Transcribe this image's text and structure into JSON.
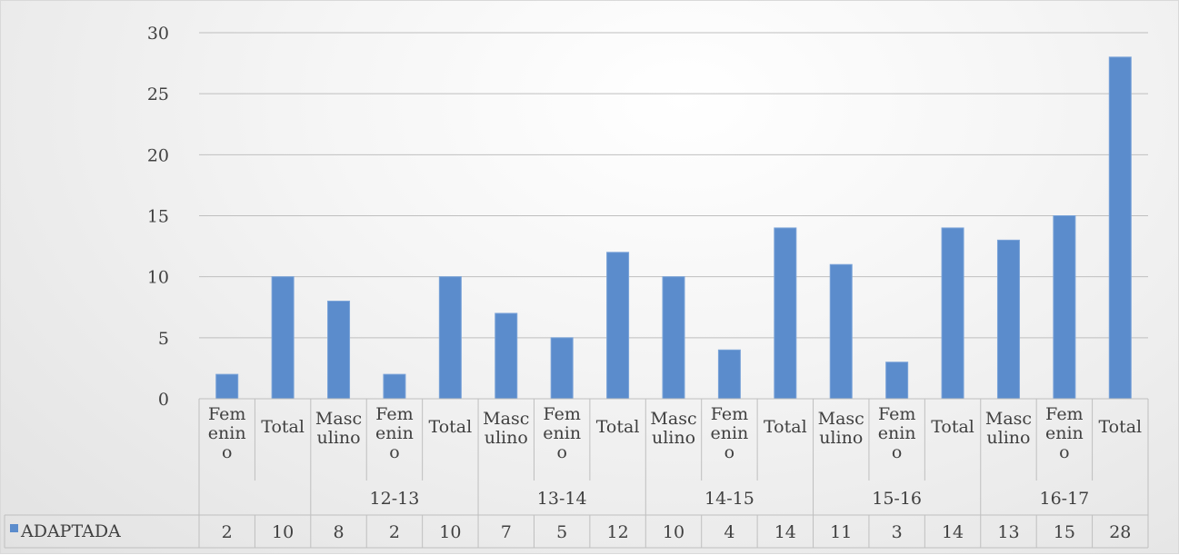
{
  "chart_data": {
    "type": "bar",
    "ylim": [
      0,
      30
    ],
    "yticks": [
      "0",
      "5",
      "10",
      "15",
      "20",
      "25",
      "30"
    ],
    "grid": true,
    "color": "#5b8ccc",
    "categories": [
      {
        "label": "Femenino",
        "label_lines": [
          "Fem",
          "enin",
          "o"
        ],
        "group": ""
      },
      {
        "label": "Total",
        "label_lines": [
          "Total"
        ],
        "group": ""
      },
      {
        "label": "Masculino",
        "label_lines": [
          "Masc",
          "ulino"
        ],
        "group": "12-13"
      },
      {
        "label": "Femenino",
        "label_lines": [
          "Fem",
          "enin",
          "o"
        ],
        "group": "12-13"
      },
      {
        "label": "Total",
        "label_lines": [
          "Total"
        ],
        "group": "12-13"
      },
      {
        "label": "Masculino",
        "label_lines": [
          "Masc",
          "ulino"
        ],
        "group": "13-14"
      },
      {
        "label": "Femenino",
        "label_lines": [
          "Fem",
          "enin",
          "o"
        ],
        "group": "13-14"
      },
      {
        "label": "Total",
        "label_lines": [
          "Total"
        ],
        "group": "13-14"
      },
      {
        "label": "Masculino",
        "label_lines": [
          "Masc",
          "ulino"
        ],
        "group": "14-15"
      },
      {
        "label": "Femenino",
        "label_lines": [
          "Fem",
          "enin",
          "o"
        ],
        "group": "14-15"
      },
      {
        "label": "Total",
        "label_lines": [
          "Total"
        ],
        "group": "14-15"
      },
      {
        "label": "Masculino",
        "label_lines": [
          "Masc",
          "ulino"
        ],
        "group": "15-16"
      },
      {
        "label": "Femenino",
        "label_lines": [
          "Fem",
          "enin",
          "o"
        ],
        "group": "15-16"
      },
      {
        "label": "Total",
        "label_lines": [
          "Total"
        ],
        "group": "15-16"
      },
      {
        "label": "Masculino",
        "label_lines": [
          "Masc",
          "ulino"
        ],
        "group": "16-17"
      },
      {
        "label": "Femenino",
        "label_lines": [
          "Fem",
          "enin",
          "o"
        ],
        "group": "16-17"
      },
      {
        "label": "Total",
        "label_lines": [
          "Total"
        ],
        "group": "16-17"
      }
    ],
    "groups": [
      {
        "label": "",
        "start": 0,
        "end": 1
      },
      {
        "label": "12-13",
        "start": 2,
        "end": 4
      },
      {
        "label": "13-14",
        "start": 5,
        "end": 7
      },
      {
        "label": "14-15",
        "start": 8,
        "end": 10
      },
      {
        "label": "15-16",
        "start": 11,
        "end": 13
      },
      {
        "label": "16-17",
        "start": 14,
        "end": 16
      }
    ],
    "series": [
      {
        "name": "ADAPTADA",
        "values": [
          2,
          10,
          8,
          2,
          10,
          7,
          5,
          12,
          10,
          4,
          14,
          11,
          3,
          14,
          13,
          15,
          28
        ]
      }
    ],
    "data_table": true
  }
}
